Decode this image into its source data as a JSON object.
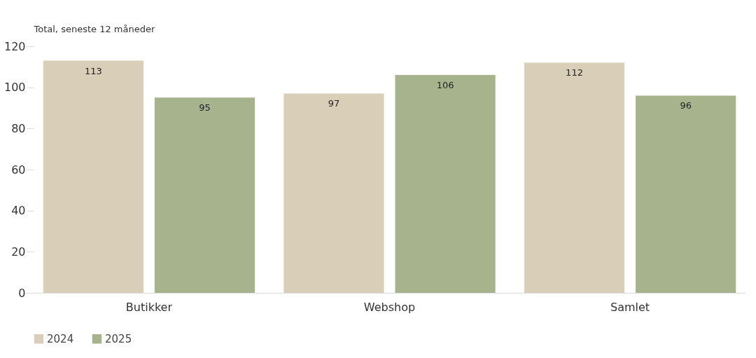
{
  "chart_data": {
    "type": "bar",
    "ylabel": "Total, seneste 12 måneder",
    "categories": [
      "Butikker",
      "Webshop",
      "Samlet"
    ],
    "series": [
      {
        "name": "2024",
        "color": "#d9cfb8",
        "values": [
          113,
          97,
          112
        ]
      },
      {
        "name": "2025",
        "color": "#a6b38d",
        "values": [
          95,
          106,
          96
        ]
      }
    ],
    "ylim": [
      0,
      120
    ],
    "yticks": [
      0,
      20,
      40,
      60,
      80,
      100,
      120
    ],
    "grid": false,
    "legend": "bottom",
    "data_labels": true
  }
}
